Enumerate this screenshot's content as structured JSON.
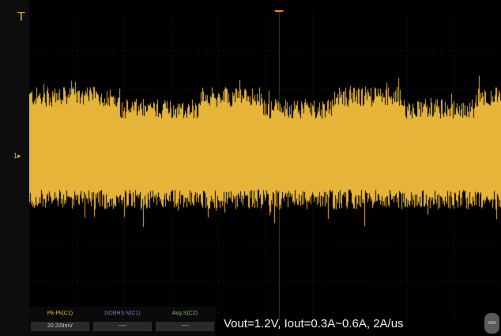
{
  "colors": {
    "trace": "#e7b43a",
    "background": "#000000",
    "grid": "#2c2c2c",
    "meas_1": "#e7b43a",
    "meas_2": "#9c63d6",
    "meas_3": "#7bc46a"
  },
  "trigger_icon": "trigger-T-icon",
  "channel_marker_label": "1",
  "measurements": [
    {
      "label": "Pk-Pk(C1)",
      "value": "20.209mV"
    },
    {
      "label": "DOBHS N(C1)",
      "value": "----"
    },
    {
      "label": "Avg S(C2)",
      "value": "----"
    }
  ],
  "caption": "Vout=1.2V,  Iout=0.3A~0.6A,  2A/us"
}
